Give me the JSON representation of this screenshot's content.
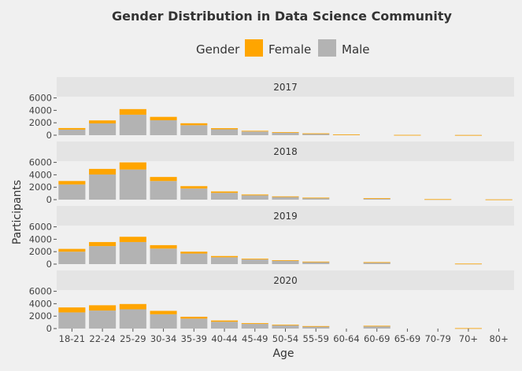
{
  "chart_data": {
    "type": "bar",
    "stacked": true,
    "faceted_by": "year",
    "title": "Gender Distribution in Data Science Community",
    "xlabel": "Age",
    "ylabel": "Participants",
    "legend": {
      "title": "Gender",
      "position": "top",
      "entries": [
        {
          "name": "Female",
          "color": "#FFA500"
        },
        {
          "name": "Male",
          "color": "#B3B3B3"
        }
      ]
    },
    "categories": [
      "18-21",
      "22-24",
      "25-29",
      "30-34",
      "35-39",
      "40-44",
      "45-49",
      "50-54",
      "55-59",
      "60-64",
      "60-69",
      "65-69",
      "70-79",
      "70+",
      "80+"
    ],
    "yticks": [
      0,
      2000,
      4000,
      6000
    ],
    "ytick_labels": [
      "0",
      "2000",
      "4000",
      "6000"
    ],
    "ylim": [
      0,
      6200
    ],
    "grid": false,
    "facets": [
      {
        "label": "2017",
        "series": [
          {
            "name": "Male",
            "values": [
              900,
              1900,
              3300,
              2400,
              1600,
              950,
              600,
              420,
              260,
              100,
              0,
              40,
              0,
              25,
              0
            ]
          },
          {
            "name": "Female",
            "values": [
              250,
              480,
              900,
              550,
              320,
              180,
              110,
              70,
              40,
              15,
              0,
              5,
              0,
              5,
              0
            ]
          }
        ]
      },
      {
        "label": "2018",
        "series": [
          {
            "name": "Male",
            "values": [
              2450,
              4050,
              4850,
              3000,
              1800,
              1100,
              700,
              450,
              280,
              0,
              200,
              0,
              70,
              0,
              30
            ]
          },
          {
            "name": "Female",
            "values": [
              550,
              900,
              1150,
              650,
              380,
              220,
              130,
              80,
              45,
              0,
              30,
              0,
              10,
              0,
              5
            ]
          }
        ]
      },
      {
        "label": "2019",
        "series": [
          {
            "name": "Male",
            "values": [
              2000,
              2900,
              3550,
              2500,
              1700,
              1100,
              750,
              550,
              350,
              0,
              280,
              0,
              0,
              70,
              0
            ]
          },
          {
            "name": "Female",
            "values": [
              450,
              650,
              850,
              550,
              300,
              200,
              120,
              80,
              50,
              0,
              40,
              0,
              0,
              10,
              0
            ]
          }
        ]
      },
      {
        "label": "2020",
        "series": [
          {
            "name": "Male",
            "values": [
              2600,
              2900,
              3100,
              2300,
              1600,
              1100,
              750,
              550,
              350,
              0,
              400,
              0,
              0,
              60,
              0
            ]
          },
          {
            "name": "Female",
            "values": [
              800,
              850,
              850,
              550,
              300,
              200,
              120,
              80,
              50,
              0,
              50,
              0,
              0,
              10,
              0
            ]
          }
        ]
      }
    ]
  }
}
